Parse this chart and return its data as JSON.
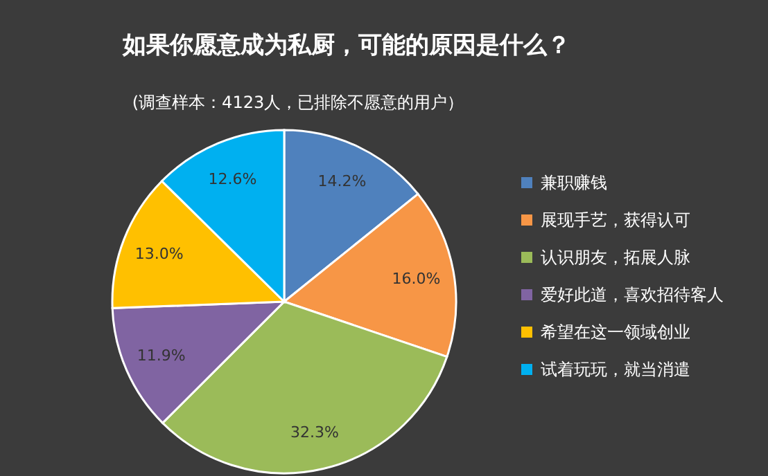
{
  "chart_data": {
    "type": "pie",
    "title": "如果你愿意成为私厨，可能的原因是什么？",
    "subtitle": "(调查样本：4123人，已排除不愿意的用户）",
    "categories": [
      "兼职赚钱",
      "展现手艺，获得认可",
      "认识朋友，拓展人脉",
      "爱好此道，喜欢招待客人",
      "希望在这一领域创业",
      "试着玩玩，就当消遣"
    ],
    "values": [
      14.2,
      16.0,
      32.3,
      11.9,
      13.0,
      12.6
    ],
    "colors": [
      "#4f81bd",
      "#f79646",
      "#9bbb59",
      "#8064a2",
      "#ffc000",
      "#00b0f0"
    ],
    "value_labels": [
      "14.2%",
      "16.0%",
      "32.3%",
      "11.9%",
      "13.0%",
      "12.6%"
    ],
    "legend": "right"
  }
}
